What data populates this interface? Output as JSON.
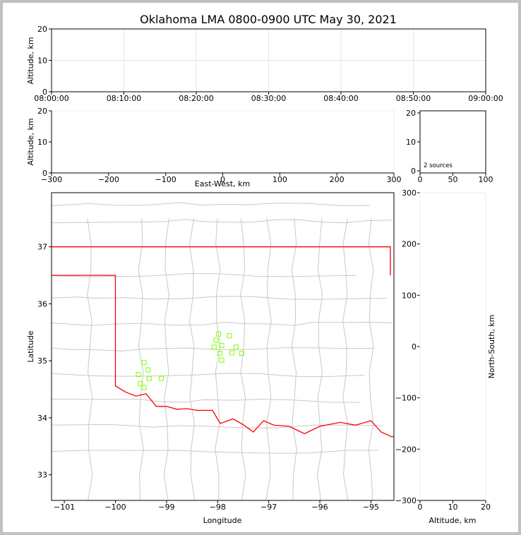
{
  "title": "Oklahoma LMA 0800-0900 UTC May 30, 2021",
  "colors": {
    "background": "#ffffff",
    "frame": "#c0c0c0",
    "state_border": "#ff0000",
    "county_lines": "#c8c8c8",
    "source_marker": "#7fff00",
    "grid": "#e6e6e6"
  },
  "chart_data": [
    {
      "id": "time_height",
      "type": "scatter",
      "xlabel": "",
      "ylabel": "Altitude, km",
      "x_tick_labels": [
        "08:00:00",
        "08:10:00",
        "08:20:00",
        "08:30:00",
        "08:40:00",
        "08:50:00",
        "09:00:00"
      ],
      "y_ticks": [
        0,
        10,
        20
      ],
      "ylim": [
        0,
        20
      ],
      "grid": true,
      "points": []
    },
    {
      "id": "ew_height",
      "type": "scatter",
      "xlabel": "East-West, km",
      "ylabel": "Altitude, km",
      "x_ticks": [
        -300,
        -200,
        -100,
        0,
        100,
        200,
        300
      ],
      "xlim": [
        -300,
        300
      ],
      "y_ticks": [
        0,
        10,
        20
      ],
      "ylim": [
        0,
        20
      ],
      "points": []
    },
    {
      "id": "histogram",
      "type": "bar",
      "x_ticks": [
        0,
        50,
        100
      ],
      "xlim": [
        0,
        100
      ],
      "y_ticks": [
        0,
        10,
        20
      ],
      "ylim": [
        0,
        20
      ],
      "annotation": "2 sources",
      "values": []
    },
    {
      "id": "plan_view",
      "type": "scatter",
      "xlabel": "Longitude",
      "ylabel": "Latitude",
      "right_ylabel": "North-South, km",
      "x_ticks": [
        -101,
        -100,
        -99,
        -98,
        -97,
        -96,
        -95
      ],
      "xlim": [
        -101.25,
        -94.55
      ],
      "y_ticks": [
        33,
        34,
        35,
        36,
        37
      ],
      "ylim": [
        32.55,
        37.95
      ],
      "ns_ticks": [
        -300,
        -200,
        -100,
        0,
        100,
        200,
        300
      ],
      "points": [
        {
          "lon": -97.98,
          "lat": 35.47
        },
        {
          "lon": -98.03,
          "lat": 35.36
        },
        {
          "lon": -97.77,
          "lat": 35.44
        },
        {
          "lon": -97.92,
          "lat": 35.27
        },
        {
          "lon": -98.07,
          "lat": 35.24
        },
        {
          "lon": -97.64,
          "lat": 35.24
        },
        {
          "lon": -97.96,
          "lat": 35.13
        },
        {
          "lon": -97.72,
          "lat": 35.14
        },
        {
          "lon": -97.53,
          "lat": 35.13
        },
        {
          "lon": -97.92,
          "lat": 35.01
        },
        {
          "lon": -99.44,
          "lat": 34.97
        },
        {
          "lon": -99.36,
          "lat": 34.84
        },
        {
          "lon": -99.55,
          "lat": 34.76
        },
        {
          "lon": -99.34,
          "lat": 34.69
        },
        {
          "lon": -99.1,
          "lat": 34.69
        },
        {
          "lon": -99.51,
          "lat": 34.6
        },
        {
          "lon": -99.44,
          "lat": 34.53
        }
      ]
    },
    {
      "id": "ns_height",
      "type": "scatter",
      "xlabel": "Altitude, km",
      "x_ticks": [
        0,
        10,
        20
      ],
      "xlim": [
        0,
        20
      ],
      "points": []
    }
  ]
}
